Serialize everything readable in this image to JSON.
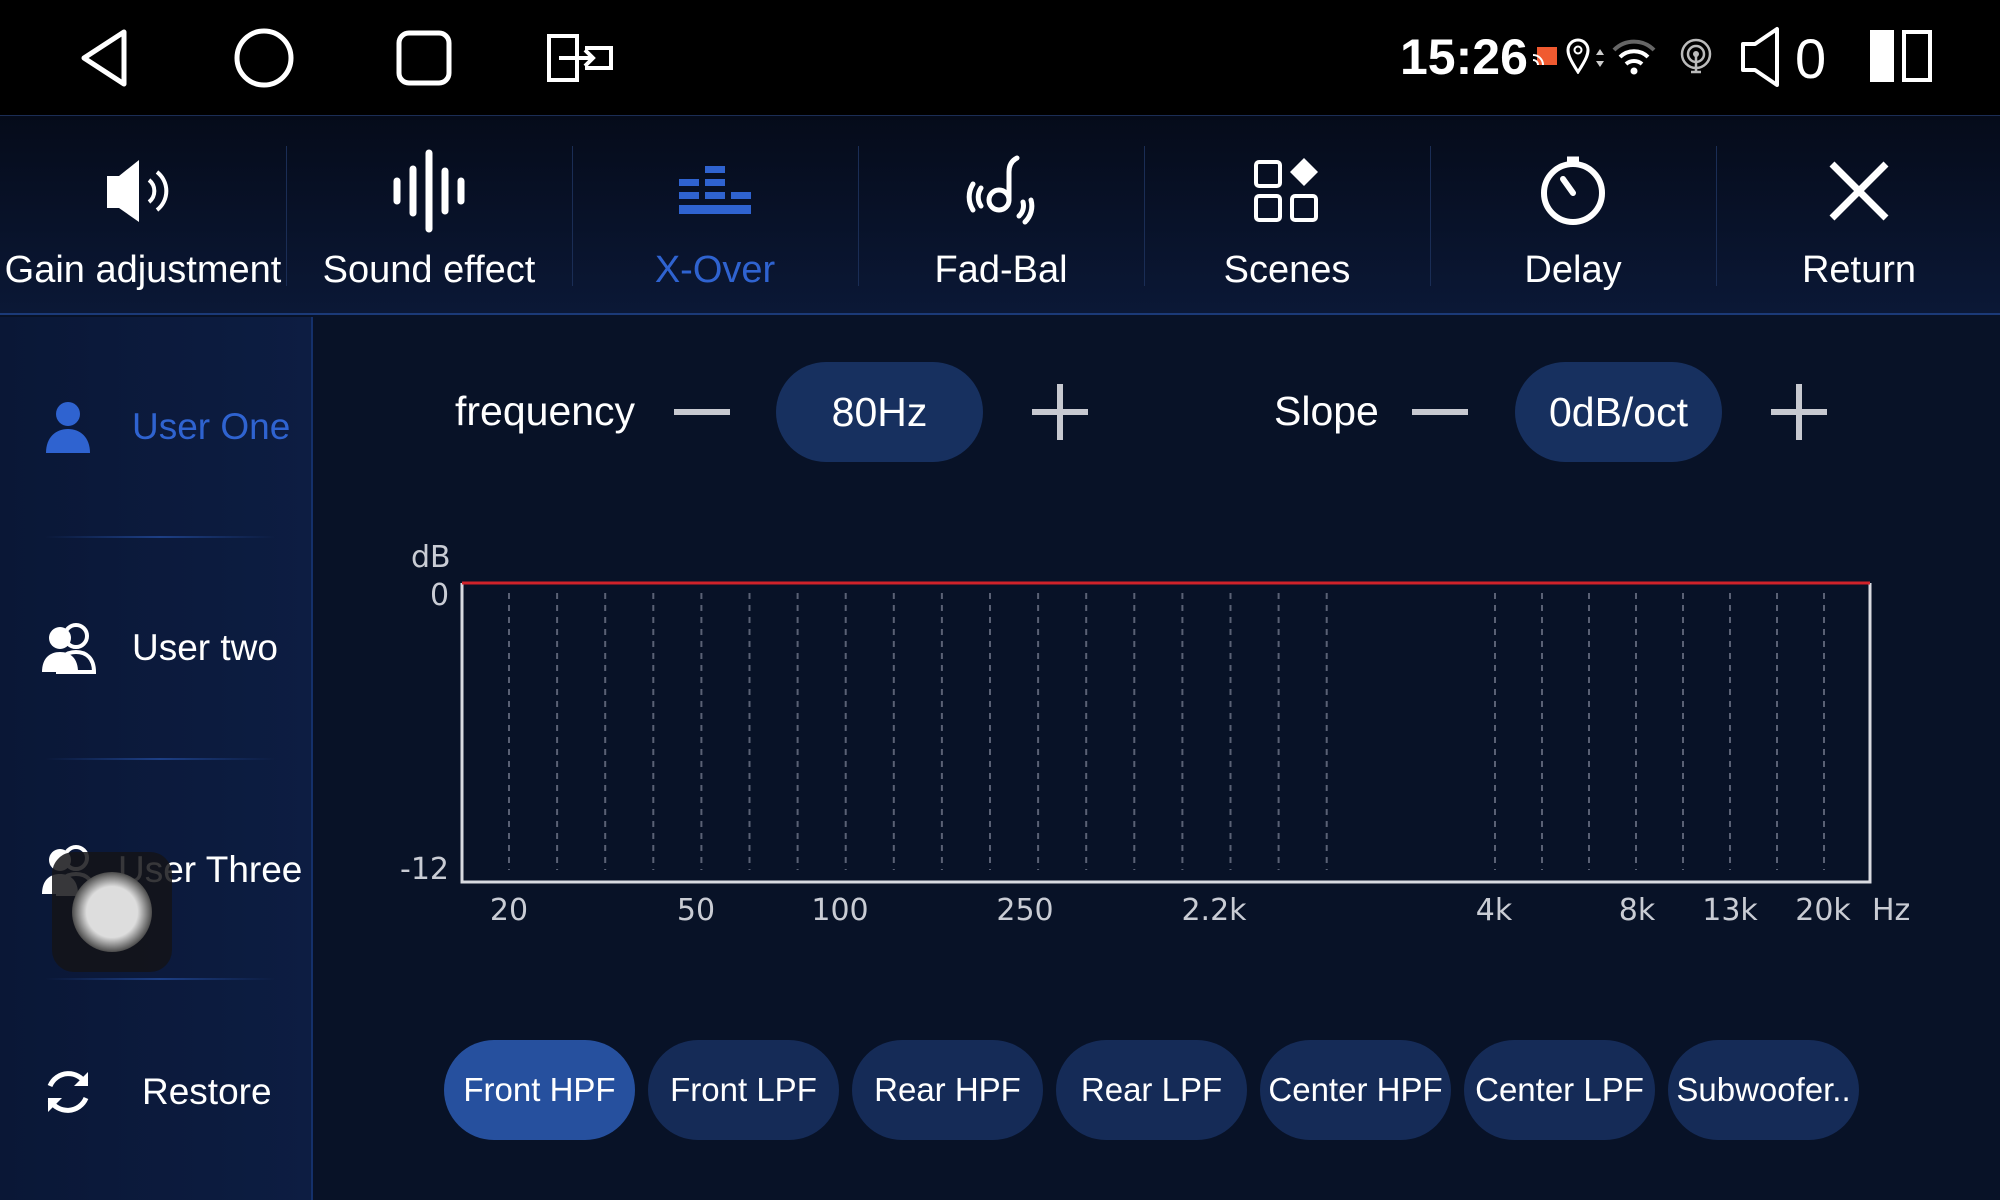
{
  "status_bar": {
    "time": "15:26",
    "volume": "0",
    "icons": [
      "back-icon",
      "home-icon",
      "recents-icon",
      "screen-cast-exit-icon",
      "cast-icon",
      "location-icon",
      "data-arrows-icon",
      "wifi-icon",
      "hotspot-icon",
      "speaker-icon",
      "split-screen-icon"
    ]
  },
  "tabs": [
    {
      "label": "Gain adjustment",
      "icon": "speaker-icon"
    },
    {
      "label": "Sound effect",
      "icon": "waveform-icon"
    },
    {
      "label": "X-Over",
      "icon": "equalizer-bars-icon",
      "active": true
    },
    {
      "label": "Fad-Bal",
      "icon": "surround-sound-icon"
    },
    {
      "label": "Scenes",
      "icon": "scenes-grid-icon"
    },
    {
      "label": "Delay",
      "icon": "timer-icon"
    },
    {
      "label": "Return",
      "icon": "close-icon"
    }
  ],
  "sidebar": {
    "items": [
      {
        "label": "User One",
        "icon": "user-icon",
        "active": true
      },
      {
        "label": "User two",
        "icon": "users-icon"
      },
      {
        "label": "User Three",
        "icon": "users-icon"
      },
      {
        "label": "Restore",
        "icon": "refresh-icon"
      }
    ]
  },
  "controls": {
    "frequency_label": "frequency",
    "frequency_value": "80Hz",
    "slope_label": "Slope",
    "slope_value": "0dB/oct"
  },
  "filters": [
    {
      "label": "Front HPF",
      "active": true
    },
    {
      "label": "Front LPF"
    },
    {
      "label": "Rear HPF"
    },
    {
      "label": "Rear LPF"
    },
    {
      "label": "Center HPF"
    },
    {
      "label": "Center LPF"
    },
    {
      "label": "Subwoofer.."
    }
  ],
  "colors": {
    "accent": "#2f63d0",
    "curve": "#d0222a",
    "background": "#081227",
    "pill": "#17305f",
    "pill_active": "#26509e"
  },
  "chart_data": {
    "type": "line",
    "ylabel": "dB",
    "xunit": "Hz",
    "ylim": [
      -12,
      0
    ],
    "yticks": [
      "0",
      "-12"
    ],
    "xticks": [
      "20",
      "50",
      "100",
      "250",
      "2.2k",
      "4k",
      "8k",
      "13k",
      "20k"
    ],
    "grid": "vertical dashed",
    "series": [
      {
        "values": [
          0,
          0,
          0,
          0,
          0,
          0,
          0,
          0,
          0
        ]
      }
    ]
  }
}
